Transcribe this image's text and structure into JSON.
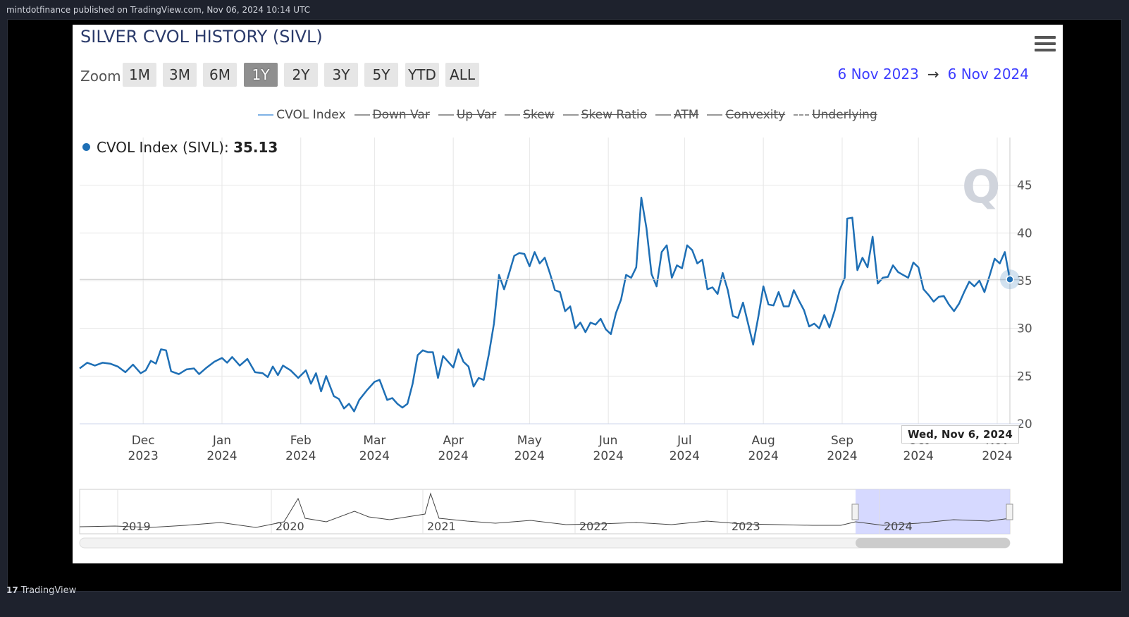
{
  "header": {
    "published": "mintdotfinance published on TradingView.com, Nov 06, 2024 10:14 UTC"
  },
  "footer": {
    "brand_icon": "tradingview-logo-icon",
    "brand_mark": "17",
    "brand": "TradingView"
  },
  "chart_title": "SILVER CVOL HISTORY (SIVL)",
  "menu_icon": "hamburger-menu-icon",
  "zoom": {
    "label": "Zoom",
    "buttons": [
      "1M",
      "3M",
      "6M",
      "1Y",
      "2Y",
      "3Y",
      "5Y",
      "YTD",
      "ALL"
    ],
    "active": "1Y"
  },
  "range": {
    "from": "6 Nov 2023",
    "arrow": "→",
    "to": "6 Nov 2024"
  },
  "legend": [
    {
      "label": "CVOL Index",
      "enabled": true
    },
    {
      "label": "Down Var",
      "enabled": false
    },
    {
      "label": "Up Var",
      "enabled": false
    },
    {
      "label": "Skew",
      "enabled": false
    },
    {
      "label": "Skew Ratio",
      "enabled": false
    },
    {
      "label": "ATM",
      "enabled": false
    },
    {
      "label": "Convexity",
      "enabled": false
    },
    {
      "label": "Underlying",
      "enabled": false,
      "dashed": true
    }
  ],
  "readout": {
    "label": "CVOL Index (SIVL):",
    "value": "35.13"
  },
  "tooltip": "Wed, Nov 6, 2024",
  "colors": {
    "series": "#1e6fb5",
    "range_blue": "#3d3dff",
    "navigator_mask": "#ccd0ff"
  },
  "chart_data": {
    "type": "line",
    "title": "SILVER CVOL HISTORY (SIVL)",
    "y_axis": {
      "range": [
        20,
        50
      ],
      "ticks": [
        20,
        25,
        30,
        35,
        40,
        45
      ],
      "position": "right"
    },
    "x_axis": {
      "range": [
        "2023-11-06",
        "2024-11-06"
      ],
      "ticks": [
        {
          "date": "2023-12-01",
          "month": "Dec",
          "year": "2023"
        },
        {
          "date": "2024-01-01",
          "month": "Jan",
          "year": "2024"
        },
        {
          "date": "2024-02-01",
          "month": "Feb",
          "year": "2024"
        },
        {
          "date": "2024-03-01",
          "month": "Mar",
          "year": "2024"
        },
        {
          "date": "2024-04-01",
          "month": "Apr",
          "year": "2024"
        },
        {
          "date": "2024-05-01",
          "month": "May",
          "year": "2024"
        },
        {
          "date": "2024-06-01",
          "month": "Jun",
          "year": "2024"
        },
        {
          "date": "2024-07-01",
          "month": "Jul",
          "year": "2024"
        },
        {
          "date": "2024-08-01",
          "month": "Aug",
          "year": "2024"
        },
        {
          "date": "2024-09-01",
          "month": "Sep",
          "year": "2024"
        },
        {
          "date": "2024-10-01",
          "month": "Oct",
          "year": "2024"
        },
        {
          "date": "2024-11-01",
          "month": "Nov",
          "year": "2024"
        }
      ]
    },
    "grid": true,
    "crosshair": {
      "date": "2024-11-06",
      "value": 35.13
    },
    "series": [
      {
        "name": "CVOL Index",
        "points": [
          [
            "2023-11-06",
            25.8
          ],
          [
            "2023-11-09",
            26.4
          ],
          [
            "2023-11-12",
            26.1
          ],
          [
            "2023-11-15",
            26.4
          ],
          [
            "2023-11-18",
            26.3
          ],
          [
            "2023-11-21",
            26.0
          ],
          [
            "2023-11-24",
            25.4
          ],
          [
            "2023-11-27",
            26.2
          ],
          [
            "2023-11-30",
            25.3
          ],
          [
            "2023-12-02",
            25.6
          ],
          [
            "2023-12-04",
            26.6
          ],
          [
            "2023-12-06",
            26.3
          ],
          [
            "2023-12-08",
            27.8
          ],
          [
            "2023-12-10",
            27.7
          ],
          [
            "2023-12-12",
            25.5
          ],
          [
            "2023-12-15",
            25.2
          ],
          [
            "2023-12-18",
            25.7
          ],
          [
            "2023-12-21",
            25.8
          ],
          [
            "2023-12-23",
            25.2
          ],
          [
            "2023-12-26",
            25.9
          ],
          [
            "2023-12-29",
            26.5
          ],
          [
            "2024-01-01",
            26.9
          ],
          [
            "2024-01-03",
            26.4
          ],
          [
            "2024-01-05",
            27.0
          ],
          [
            "2024-01-08",
            26.1
          ],
          [
            "2024-01-11",
            26.8
          ],
          [
            "2024-01-14",
            25.4
          ],
          [
            "2024-01-17",
            25.3
          ],
          [
            "2024-01-19",
            24.9
          ],
          [
            "2024-01-21",
            26.0
          ],
          [
            "2024-01-23",
            25.1
          ],
          [
            "2024-01-25",
            26.1
          ],
          [
            "2024-01-28",
            25.6
          ],
          [
            "2024-01-31",
            24.8
          ],
          [
            "2024-02-03",
            25.6
          ],
          [
            "2024-02-05",
            24.2
          ],
          [
            "2024-02-07",
            25.3
          ],
          [
            "2024-02-09",
            23.4
          ],
          [
            "2024-02-11",
            25.0
          ],
          [
            "2024-02-14",
            22.9
          ],
          [
            "2024-02-16",
            22.6
          ],
          [
            "2024-02-18",
            21.6
          ],
          [
            "2024-02-20",
            22.1
          ],
          [
            "2024-02-22",
            21.3
          ],
          [
            "2024-02-24",
            22.5
          ],
          [
            "2024-02-27",
            23.5
          ],
          [
            "2024-03-01",
            24.4
          ],
          [
            "2024-03-03",
            24.6
          ],
          [
            "2024-03-06",
            22.5
          ],
          [
            "2024-03-08",
            22.7
          ],
          [
            "2024-03-10",
            22.1
          ],
          [
            "2024-03-12",
            21.7
          ],
          [
            "2024-03-14",
            22.1
          ],
          [
            "2024-03-16",
            24.2
          ],
          [
            "2024-03-18",
            27.2
          ],
          [
            "2024-03-20",
            27.7
          ],
          [
            "2024-03-22",
            27.5
          ],
          [
            "2024-03-24",
            27.5
          ],
          [
            "2024-03-26",
            24.8
          ],
          [
            "2024-03-28",
            27.1
          ],
          [
            "2024-04-01",
            25.9
          ],
          [
            "2024-04-03",
            27.8
          ],
          [
            "2024-04-05",
            26.5
          ],
          [
            "2024-04-07",
            26.0
          ],
          [
            "2024-04-09",
            23.9
          ],
          [
            "2024-04-11",
            24.8
          ],
          [
            "2024-04-13",
            24.6
          ],
          [
            "2024-04-15",
            27.3
          ],
          [
            "2024-04-17",
            30.5
          ],
          [
            "2024-04-19",
            35.6
          ],
          [
            "2024-04-21",
            34.1
          ],
          [
            "2024-04-23",
            35.8
          ],
          [
            "2024-04-25",
            37.6
          ],
          [
            "2024-04-27",
            37.9
          ],
          [
            "2024-04-29",
            37.8
          ],
          [
            "2024-05-01",
            36.5
          ],
          [
            "2024-05-03",
            38.0
          ],
          [
            "2024-05-05",
            36.8
          ],
          [
            "2024-05-07",
            37.4
          ],
          [
            "2024-05-09",
            35.8
          ],
          [
            "2024-05-11",
            34.0
          ],
          [
            "2024-05-13",
            33.8
          ],
          [
            "2024-05-15",
            31.8
          ],
          [
            "2024-05-17",
            32.3
          ],
          [
            "2024-05-19",
            30.0
          ],
          [
            "2024-05-21",
            30.6
          ],
          [
            "2024-05-23",
            29.6
          ],
          [
            "2024-05-25",
            30.6
          ],
          [
            "2024-05-27",
            30.4
          ],
          [
            "2024-05-29",
            31.0
          ],
          [
            "2024-05-31",
            29.9
          ],
          [
            "2024-06-02",
            29.4
          ],
          [
            "2024-06-04",
            31.6
          ],
          [
            "2024-06-06",
            33.0
          ],
          [
            "2024-06-08",
            35.6
          ],
          [
            "2024-06-10",
            35.3
          ],
          [
            "2024-06-12",
            36.4
          ],
          [
            "2024-06-14",
            43.7
          ],
          [
            "2024-06-16",
            40.5
          ],
          [
            "2024-06-18",
            35.7
          ],
          [
            "2024-06-20",
            34.4
          ],
          [
            "2024-06-22",
            38.0
          ],
          [
            "2024-06-24",
            38.7
          ],
          [
            "2024-06-26",
            35.3
          ],
          [
            "2024-06-28",
            36.6
          ],
          [
            "2024-06-30",
            36.3
          ],
          [
            "2024-07-02",
            38.7
          ],
          [
            "2024-07-04",
            38.2
          ],
          [
            "2024-07-06",
            36.8
          ],
          [
            "2024-07-08",
            37.2
          ],
          [
            "2024-07-10",
            34.1
          ],
          [
            "2024-07-12",
            34.3
          ],
          [
            "2024-07-14",
            33.6
          ],
          [
            "2024-07-16",
            35.8
          ],
          [
            "2024-07-18",
            34.0
          ],
          [
            "2024-07-20",
            31.3
          ],
          [
            "2024-07-22",
            31.1
          ],
          [
            "2024-07-24",
            32.7
          ],
          [
            "2024-07-26",
            30.5
          ],
          [
            "2024-07-28",
            28.3
          ],
          [
            "2024-07-30",
            31.2
          ],
          [
            "2024-08-01",
            34.4
          ],
          [
            "2024-08-03",
            32.5
          ],
          [
            "2024-08-05",
            32.4
          ],
          [
            "2024-08-07",
            33.8
          ],
          [
            "2024-08-09",
            32.3
          ],
          [
            "2024-08-11",
            32.3
          ],
          [
            "2024-08-13",
            34.0
          ],
          [
            "2024-08-15",
            32.9
          ],
          [
            "2024-08-17",
            31.9
          ],
          [
            "2024-08-19",
            30.2
          ],
          [
            "2024-08-21",
            30.5
          ],
          [
            "2024-08-23",
            30.0
          ],
          [
            "2024-08-25",
            31.4
          ],
          [
            "2024-08-27",
            30.1
          ],
          [
            "2024-08-29",
            31.8
          ],
          [
            "2024-08-31",
            34.0
          ],
          [
            "2024-09-02",
            35.3
          ],
          [
            "2024-09-03",
            41.5
          ],
          [
            "2024-09-05",
            41.6
          ],
          [
            "2024-09-07",
            36.1
          ],
          [
            "2024-09-09",
            37.4
          ],
          [
            "2024-09-11",
            36.4
          ],
          [
            "2024-09-13",
            39.6
          ],
          [
            "2024-09-15",
            34.7
          ],
          [
            "2024-09-17",
            35.3
          ],
          [
            "2024-09-19",
            35.4
          ],
          [
            "2024-09-21",
            36.6
          ],
          [
            "2024-09-23",
            35.9
          ],
          [
            "2024-09-25",
            35.6
          ],
          [
            "2024-09-27",
            35.3
          ],
          [
            "2024-09-29",
            36.9
          ],
          [
            "2024-10-01",
            36.4
          ],
          [
            "2024-10-03",
            34.1
          ],
          [
            "2024-10-05",
            33.5
          ],
          [
            "2024-10-07",
            32.8
          ],
          [
            "2024-10-09",
            33.3
          ],
          [
            "2024-10-11",
            33.4
          ],
          [
            "2024-10-13",
            32.5
          ],
          [
            "2024-10-15",
            31.8
          ],
          [
            "2024-10-17",
            32.6
          ],
          [
            "2024-10-19",
            33.8
          ],
          [
            "2024-10-21",
            34.9
          ],
          [
            "2024-10-23",
            34.4
          ],
          [
            "2024-10-25",
            35.0
          ],
          [
            "2024-10-27",
            33.8
          ],
          [
            "2024-10-29",
            35.5
          ],
          [
            "2024-10-31",
            37.3
          ],
          [
            "2024-11-02",
            36.8
          ],
          [
            "2024-11-04",
            38.0
          ],
          [
            "2024-11-06",
            35.1
          ]
        ]
      }
    ],
    "navigator": {
      "labels": [
        "2019",
        "2020",
        "2021",
        "2022",
        "2023",
        "2024"
      ]
    }
  }
}
